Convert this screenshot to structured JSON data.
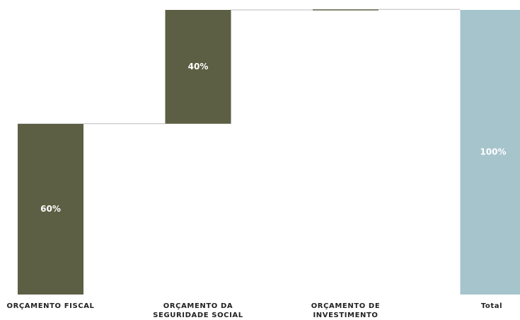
{
  "chart_data": {
    "type": "waterfall",
    "categories": [
      "ORÇAMENTO FISCAL",
      "ORÇAMENTO DA SEGURIDADE SOCIAL",
      "ORÇAMENTO DE INVESTIMENTO",
      "Total"
    ],
    "values": [
      60,
      40,
      0.2,
      100
    ],
    "value_labels": [
      "60%",
      "40%",
      null,
      "100%"
    ],
    "total": [
      false,
      false,
      false,
      true
    ],
    "color": "#5c5f43",
    "total_color": "#a6c4cc",
    "ylim": [
      0,
      100
    ]
  }
}
